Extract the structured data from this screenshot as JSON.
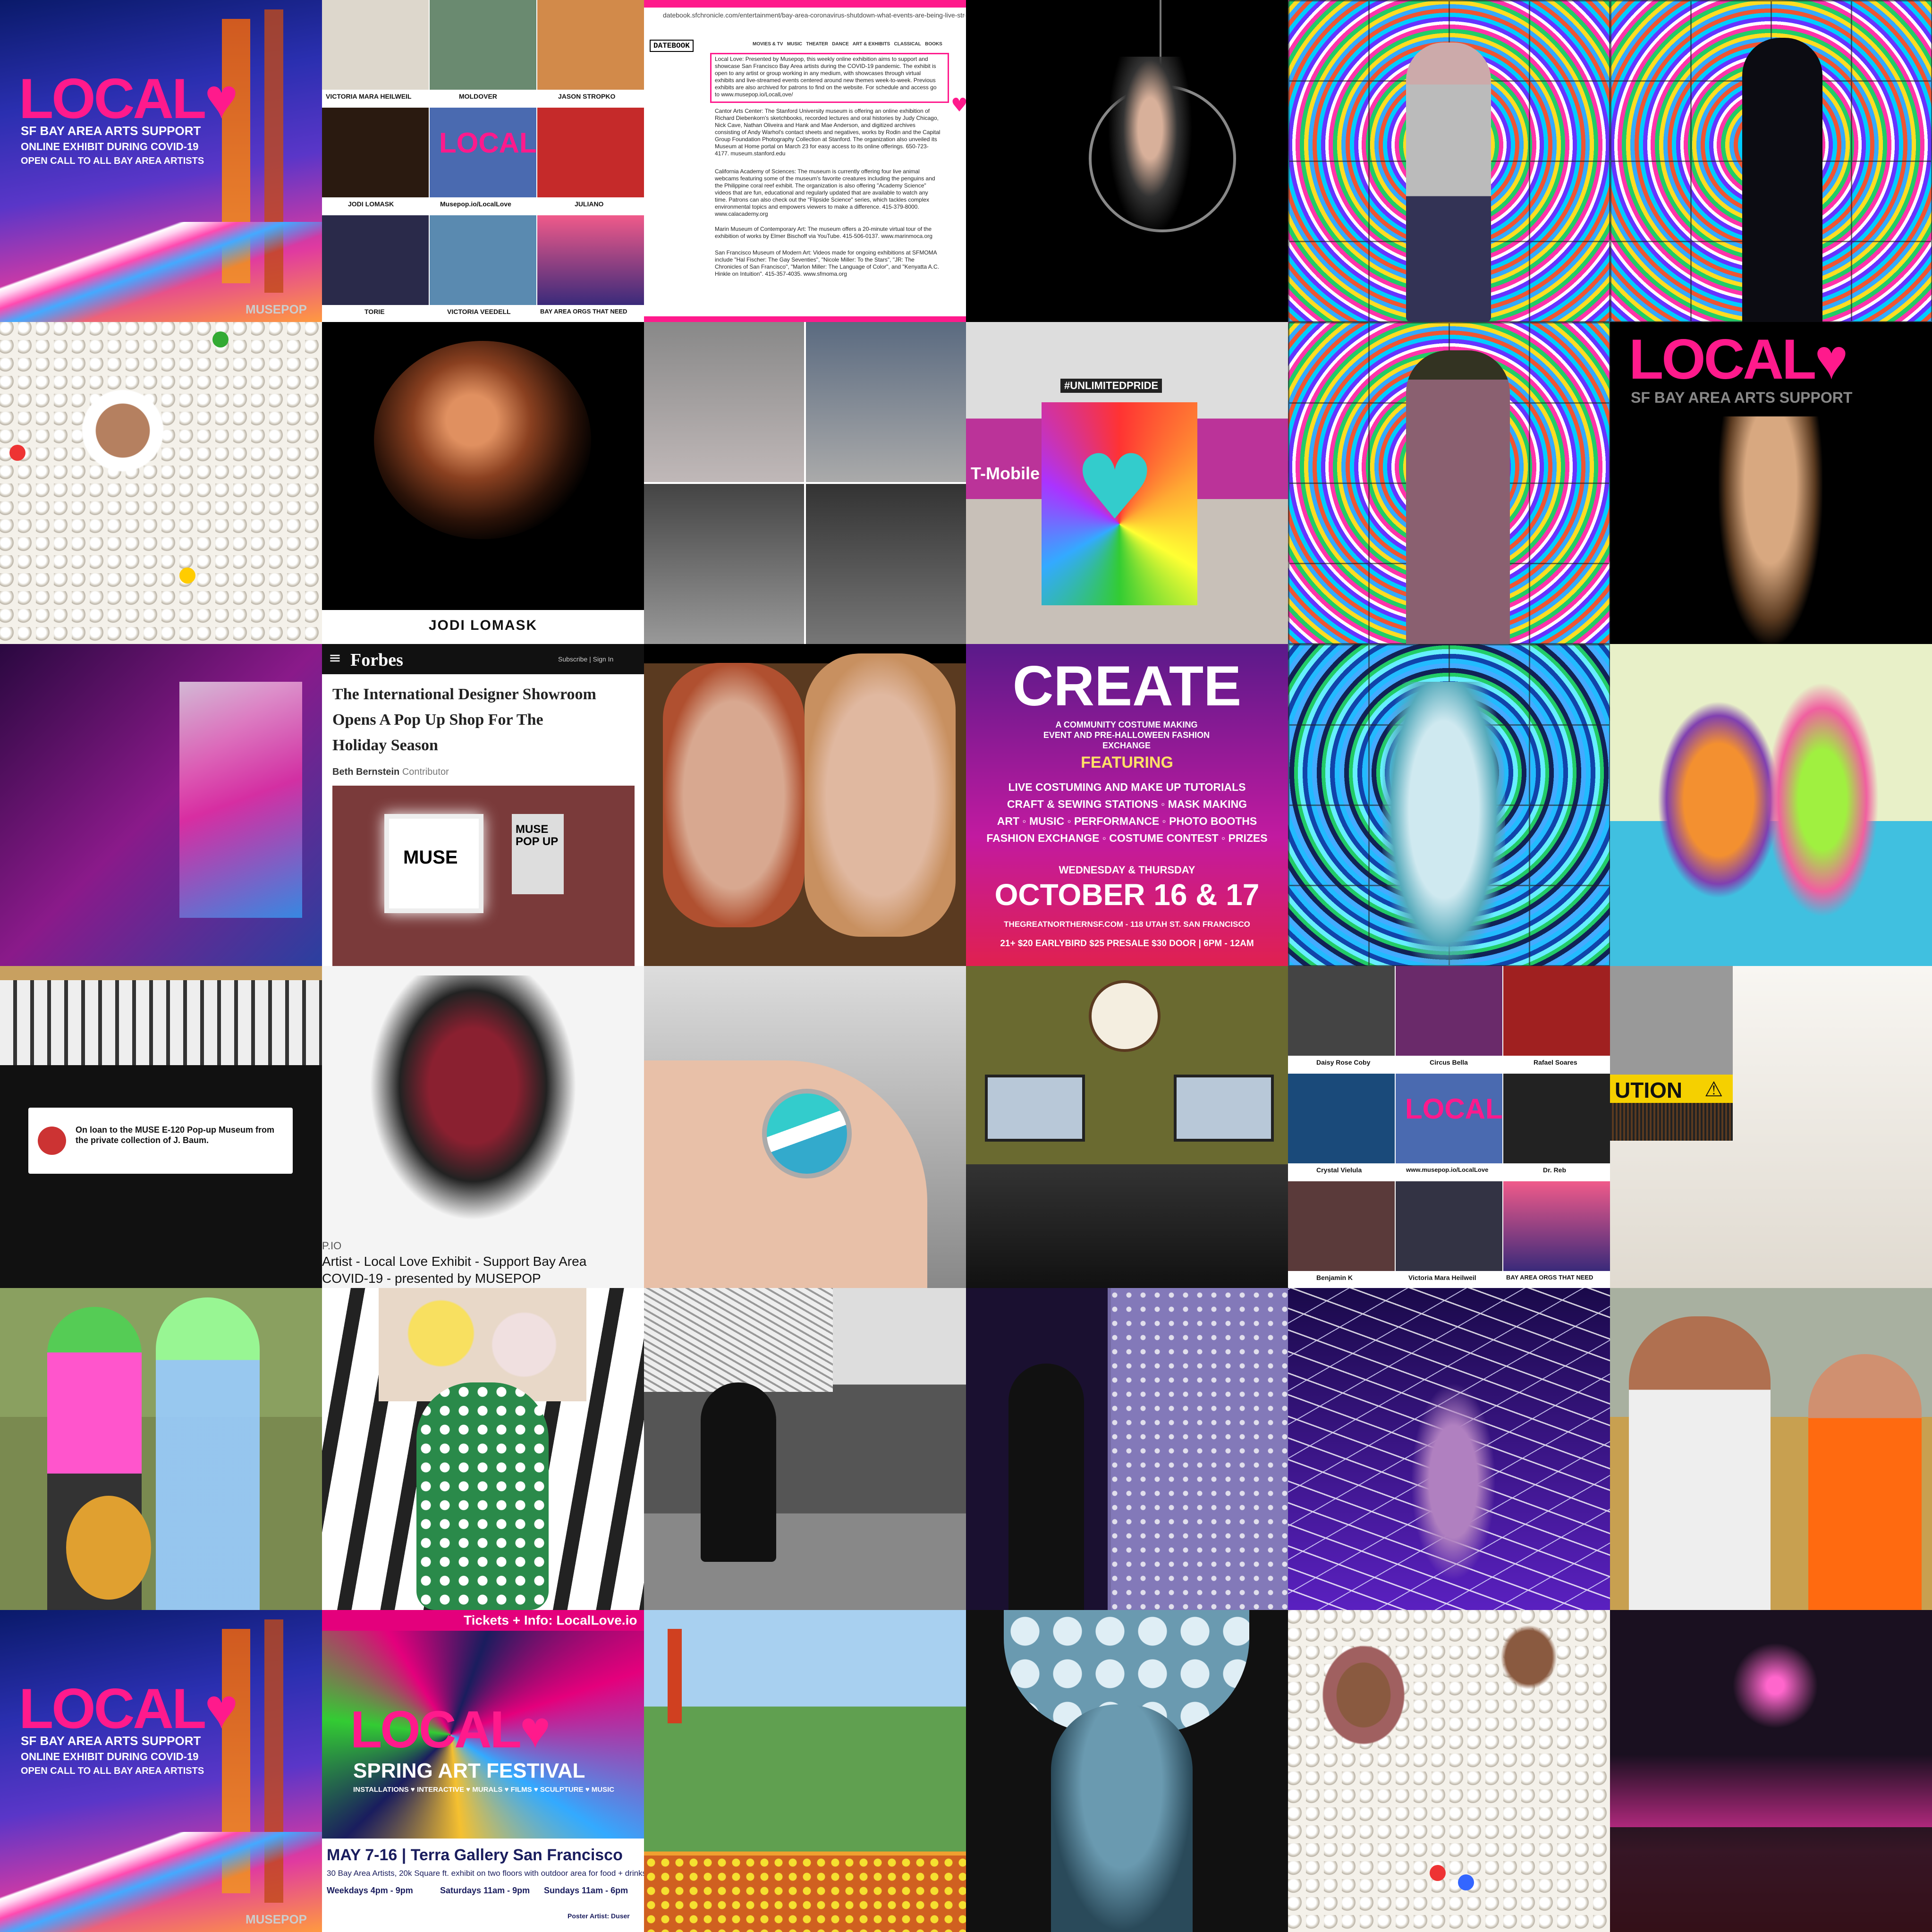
{
  "tiles": {
    "t1": {
      "brand": "LOCAL",
      "subtitle": "SF BAY AREA ARTS SUPPORT",
      "line1": "ONLINE EXHIBIT DURING COVID-19",
      "line2": "OPEN CALL TO ALL BAY AREA ARTISTS",
      "footer": "MUSEPOP"
    },
    "t2": {
      "labels": [
        "VICTORIA MARA HEILWEIL",
        "MOLDOVER",
        "JASON STROPKO",
        "JODI LOMASK",
        "Musepop.io/LocalLove",
        "JULIANO",
        "TORIE",
        "VICTORIA VEEDELL",
        "BAY AREA ORGS THAT NEED"
      ],
      "center_brand": "LOCAL"
    },
    "t3": {
      "url": "datebook.sfchronicle.com/entertainment/bay-area-coronavirus-shutdown-what-events-are-being-live-streamed-during",
      "masthead": "DATEBOOK",
      "nav": [
        "MOVIES & TV",
        "MUSIC",
        "THEATER",
        "DANCE",
        "ART & EXHIBITS",
        "CLASSICAL",
        "BOOKS"
      ],
      "para1": "Local Love: Presented by Musepop, this weekly online exhibition aims to support and showcase San Francisco Bay Area artists during the COVID-19 pandemic. The exhibit is open to any artist or group working in any medium, with showcases through virtual exhibits and live-streamed events centered around new themes week-to-week. Previous exhibits are also archived for patrons to find on the website. For schedule and access go to www.musepop.io/LocalLove/",
      "para2": "Cantor Arts Center: The Stanford University museum is offering an online exhibition of Richard Diebenkorn's sketchbooks, recorded lectures and oral histories by Judy Chicago, Nick Cave, Nathan Oliveira and Hank and Mae Anderson, and digitized archives consisting of Andy Warhol's contact sheets and negatives, works by Rodin and the Capital Group Foundation Photography Collection at Stanford. The organization also unveiled its Museum at Home portal on March 23 for easy access to its online offerings. 650-723-4177. museum.stanford.edu",
      "para3": "California Academy of Sciences: The museum is currently offering four live animal webcams featuring some of the museum's favorite creatures including the penguins and the Philippine coral reef exhibit. The organization is also offering \"Academy Science\" videos that are fun, educational and regularly updated that are available to watch any time. Patrons can also check out the \"Flipside Science\" series, which tackles complex environmental topics and empowers viewers to make a difference. 415-379-8000. www.calacademy.org",
      "para4": "Marin Museum of Contemporary Art: The museum offers a 20-minute virtual tour of the exhibition of works by Elmer Bischoff via YouTube. 415-506-0137. www.marinmoca.org",
      "para5": "San Francisco Museum of Modern Art: Videos made for ongoing exhibitions at SFMOMA include \"Hal Fischer: The Gay Seventies\", \"Nicole Miller: To the Stars\", \"JR: The Chronicles of San Francisco\", \"Marlon Miller: The Language of Color\", and \"Kenyatta A.C. Hinkle on Intuition\". 415-357-4035. www.sfmoma.org"
    },
    "t8": {
      "caption": "JODI LOMASK"
    },
    "t10": {
      "sign": "#UNLIMITEDPRIDE",
      "tent": "T-Mobile"
    },
    "t12": {
      "brand": "LOCAL",
      "subtitle": "SF BAY AREA ARTS SUPPORT"
    },
    "t14": {
      "masthead": "Forbes",
      "links": "Subscribe | Sign In",
      "headline": "The International Designer Showroom Opens A Pop Up Shop For The Holiday Season",
      "author": "Beth Bernstein",
      "role": "Contributor",
      "sign1": "MUSE",
      "sign2": "MUSE POP UP"
    },
    "t16": {
      "title": "CREATE",
      "subtitle": "A COMMUNITY COSTUME MAKING EVENT AND PRE-HALLOWEEN FASHION EXCHANGE",
      "featuring": "FEATURING",
      "items": [
        "LIVE COSTUMING AND MAKE UP TUTORIALS",
        "CRAFT & SEWING STATIONS ◦ MASK MAKING",
        "ART ◦ MUSIC ◦ PERFORMANCE ◦ PHOTO BOOTHS",
        "FASHION EXCHANGE ◦ COSTUME CONTEST ◦ PRIZES"
      ],
      "days": "WEDNESDAY & THURSDAY",
      "date": "OCTOBER 16 & 17",
      "venue": "THEGREATNORTHERNSF.COM - 118 UTAH ST. SAN FRANCISCO",
      "pricing": "21+ $20 EARLYBIRD $25 PRESALE $30 DOOR | 6PM - 12AM"
    },
    "t19": {
      "label": "On loan to the MUSE E-120 Pop-up Museum from the private collection of J. Baum."
    },
    "t20": {
      "site": "P.IO",
      "line1": "Artist - Local Love Exhibit - Support Bay Area",
      "line2": "COVID-19 - presented by MUSEPOP"
    },
    "t23": {
      "labels": [
        "Daisy Rose Coby",
        "Circus Bella",
        "Rafael Soares",
        "Crystal Vielula",
        "www.musepop.io/LocalLove",
        "Dr. Reb",
        "Benjamin K",
        "Victoria Mara Heilweil",
        "BAY AREA ORGS THAT NEED"
      ],
      "center_brand": "LOCAL"
    },
    "t24": {
      "tape": "UTION"
    },
    "t31": {
      "brand": "LOCAL",
      "subtitle": "SF BAY AREA ARTS SUPPORT",
      "line1": "ONLINE EXHIBIT DURING COVID-19",
      "line2": "OPEN CALL TO ALL BAY AREA ARTISTS",
      "footer": "MUSEPOP"
    },
    "t32": {
      "top": "Tickets + Info: LocalLove.io",
      "brand": "LOCAL",
      "title": "SPRING ART FESTIVAL",
      "cats": "INSTALLATIONS ♥ INTERACTIVE ♥ MURALS ♥ FILMS ♥ SCULPTURE ♥ MUSIC",
      "date": "MAY 7-16 | Terra Gallery San Francisco",
      "desc": "30 Bay Area Artists, 20k Square ft. exhibit on two floors with outdoor area for food + drinks",
      "hours1": "Weekdays 4pm - 9pm",
      "hours2": "Saturdays 11am - 9pm",
      "hours3": "Sundays 11am - 6pm",
      "sponsor": "Poster Artist: Duser"
    }
  },
  "colors": {
    "pink": "#ff1a8c",
    "magenta": "#e4007c",
    "navy": "#1a1d5e"
  }
}
